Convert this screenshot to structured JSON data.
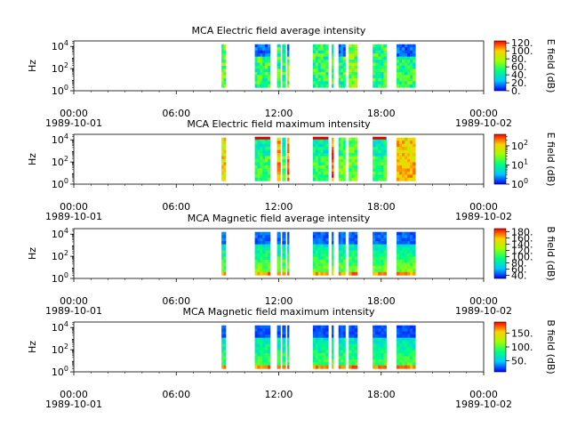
{
  "chart_data": [
    {
      "type": "heatmap",
      "title": "MCA  Electric field average intensity",
      "ylabel": "Hz",
      "ylim_exp": [
        0,
        4.5
      ],
      "y_ticks": [
        {
          "base": "10",
          "exp": "0",
          "value_exp": 0
        },
        {
          "base": "10",
          "exp": "2",
          "value_exp": 2
        },
        {
          "base": "10",
          "exp": "4",
          "value_exp": 4
        }
      ],
      "x_range_hours": [
        0,
        24
      ],
      "x_ticks": [
        {
          "hour": 0,
          "label": "00:00",
          "date": "1989-10-01"
        },
        {
          "hour": 6,
          "label": "06:00",
          "date": ""
        },
        {
          "hour": 12,
          "label": "12:00",
          "date": ""
        },
        {
          "hour": 18,
          "label": "18:00",
          "date": ""
        },
        {
          "hour": 24,
          "label": "00:00",
          "date": "1989-10-02"
        }
      ],
      "colorbar": {
        "label": "E field (dB)",
        "scale": "linear",
        "range": [
          0,
          125
        ],
        "ticks": [
          {
            "text": "0.",
            "value": 0
          },
          {
            "text": "20.",
            "value": 20
          },
          {
            "text": "40.",
            "value": 40
          },
          {
            "text": "60.",
            "value": 60
          },
          {
            "text": "80.",
            "value": 80
          },
          {
            "text": "100.",
            "value": 100
          },
          {
            "text": "120.",
            "value": 120
          }
        ]
      },
      "pattern": "avgE",
      "data_intervals_hours": [
        [
          8.65,
          8.9
        ],
        [
          10.6,
          11.5
        ],
        [
          11.9,
          12.1
        ],
        [
          12.2,
          12.4
        ],
        [
          12.5,
          12.6
        ],
        [
          14.0,
          14.9
        ],
        [
          15.1,
          15.2
        ],
        [
          15.5,
          15.9
        ],
        [
          16.1,
          16.6
        ],
        [
          17.5,
          18.3
        ],
        [
          18.9,
          20.0
        ]
      ],
      "saturated_marks": []
    },
    {
      "type": "heatmap",
      "title": "MCA  Electric field maximum intensity",
      "ylabel": "Hz",
      "ylim_exp": [
        0,
        4.5
      ],
      "y_ticks": [
        {
          "base": "10",
          "exp": "0",
          "value_exp": 0
        },
        {
          "base": "10",
          "exp": "2",
          "value_exp": 2
        },
        {
          "base": "10",
          "exp": "4",
          "value_exp": 4
        }
      ],
      "x_range_hours": [
        0,
        24
      ],
      "x_ticks": [
        {
          "hour": 0,
          "label": "00:00",
          "date": "1989-10-01"
        },
        {
          "hour": 6,
          "label": "06:00",
          "date": ""
        },
        {
          "hour": 12,
          "label": "12:00",
          "date": ""
        },
        {
          "hour": 18,
          "label": "18:00",
          "date": ""
        },
        {
          "hour": 24,
          "label": "00:00",
          "date": "1989-10-02"
        }
      ],
      "colorbar": {
        "label": "E field (dB)",
        "scale": "log",
        "range_exp": [
          0,
          2.6
        ],
        "ticks": [
          {
            "base": "10",
            "exp": "0",
            "value_exp": 0
          },
          {
            "base": "10",
            "exp": "1",
            "value_exp": 1
          },
          {
            "base": "10",
            "exp": "2",
            "value_exp": 2
          }
        ]
      },
      "pattern": "maxE",
      "data_intervals_hours": [
        [
          8.65,
          8.9
        ],
        [
          10.6,
          11.5
        ],
        [
          11.9,
          12.1
        ],
        [
          12.2,
          12.4
        ],
        [
          12.5,
          12.6
        ],
        [
          14.0,
          14.9
        ],
        [
          15.1,
          15.2
        ],
        [
          15.5,
          15.9
        ],
        [
          16.1,
          16.6
        ],
        [
          17.5,
          18.3
        ],
        [
          18.9,
          20.0
        ]
      ],
      "saturated_marks": [
        [
          10.6,
          11.5
        ],
        [
          14.0,
          14.9
        ],
        [
          17.5,
          18.3
        ]
      ]
    },
    {
      "type": "heatmap",
      "title": "MCA  Magnetic field average intensity",
      "ylabel": "Hz",
      "ylim_exp": [
        0,
        4.5
      ],
      "y_ticks": [
        {
          "base": "10",
          "exp": "0",
          "value_exp": 0
        },
        {
          "base": "10",
          "exp": "2",
          "value_exp": 2
        },
        {
          "base": "10",
          "exp": "4",
          "value_exp": 4
        }
      ],
      "x_range_hours": [
        0,
        24
      ],
      "x_ticks": [
        {
          "hour": 0,
          "label": "00:00",
          "date": "1989-10-01"
        },
        {
          "hour": 6,
          "label": "06:00",
          "date": ""
        },
        {
          "hour": 12,
          "label": "12:00",
          "date": ""
        },
        {
          "hour": 18,
          "label": "18:00",
          "date": ""
        },
        {
          "hour": 24,
          "label": "00:00",
          "date": "1989-10-02"
        }
      ],
      "colorbar": {
        "label": "B field (dB)",
        "scale": "linear",
        "range": [
          30,
          190
        ],
        "ticks": [
          {
            "text": "40.",
            "value": 40
          },
          {
            "text": "60.",
            "value": 60
          },
          {
            "text": "80.",
            "value": 80
          },
          {
            "text": "100.",
            "value": 100
          },
          {
            "text": "120.",
            "value": 120
          },
          {
            "text": "140.",
            "value": 140
          },
          {
            "text": "160.",
            "value": 160
          },
          {
            "text": "180.",
            "value": 180
          }
        ]
      },
      "pattern": "avgB",
      "data_intervals_hours": [
        [
          8.65,
          8.9
        ],
        [
          10.6,
          11.5
        ],
        [
          11.9,
          12.1
        ],
        [
          12.2,
          12.4
        ],
        [
          12.5,
          12.6
        ],
        [
          14.0,
          14.9
        ],
        [
          15.1,
          15.2
        ],
        [
          15.5,
          15.9
        ],
        [
          16.1,
          16.6
        ],
        [
          17.5,
          18.3
        ],
        [
          18.9,
          20.0
        ]
      ],
      "saturated_marks": []
    },
    {
      "type": "heatmap",
      "title": "MCA  Magnetic field maximum intensity",
      "ylabel": "Hz",
      "ylim_exp": [
        0,
        4.5
      ],
      "y_ticks": [
        {
          "base": "10",
          "exp": "0",
          "value_exp": 0
        },
        {
          "base": "10",
          "exp": "2",
          "value_exp": 2
        },
        {
          "base": "10",
          "exp": "4",
          "value_exp": 4
        }
      ],
      "x_range_hours": [
        0,
        24
      ],
      "x_ticks": [
        {
          "hour": 0,
          "label": "00:00",
          "date": "1989-10-01"
        },
        {
          "hour": 6,
          "label": "06:00",
          "date": ""
        },
        {
          "hour": 12,
          "label": "12:00",
          "date": ""
        },
        {
          "hour": 18,
          "label": "18:00",
          "date": ""
        },
        {
          "hour": 24,
          "label": "00:00",
          "date": "1989-10-02"
        }
      ],
      "colorbar": {
        "label": "B field (dB)",
        "scale": "linear",
        "range": [
          10,
          190
        ],
        "ticks": [
          {
            "text": "50.",
            "value": 50
          },
          {
            "text": "100.",
            "value": 100
          },
          {
            "text": "150.",
            "value": 150
          }
        ]
      },
      "pattern": "maxB",
      "data_intervals_hours": [
        [
          8.65,
          8.9
        ],
        [
          10.6,
          11.5
        ],
        [
          11.9,
          12.1
        ],
        [
          12.2,
          12.4
        ],
        [
          12.5,
          12.6
        ],
        [
          14.0,
          14.9
        ],
        [
          15.1,
          15.2
        ],
        [
          15.5,
          15.9
        ],
        [
          16.1,
          16.6
        ],
        [
          17.5,
          18.3
        ],
        [
          18.9,
          20.0
        ]
      ],
      "saturated_marks": []
    }
  ]
}
